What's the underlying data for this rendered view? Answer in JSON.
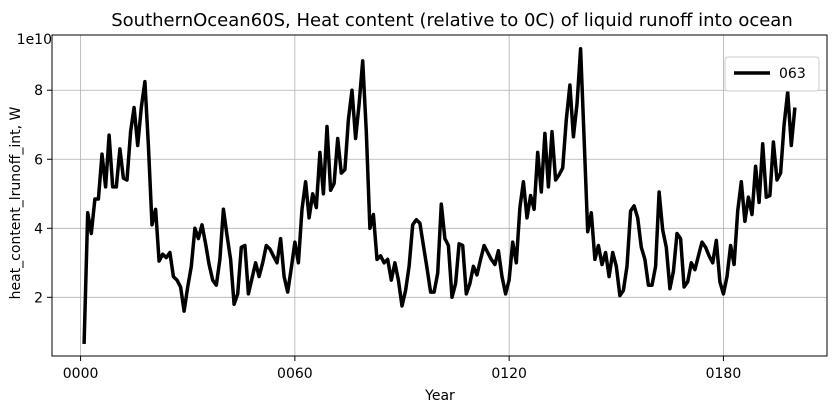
{
  "chart_data": {
    "type": "line",
    "title": "SouthernOcean60S, Heat content (relative to 0C) of liquid runoff into ocean",
    "xlabel": "Year",
    "ylabel": "heat_content_lrunoff_int, W",
    "y_offset_label": "1e10",
    "x_ticks": [
      {
        "value": 0,
        "label": "0000"
      },
      {
        "value": 60,
        "label": "0060"
      },
      {
        "value": 120,
        "label": "0120"
      },
      {
        "value": 180,
        "label": "0180"
      }
    ],
    "y_ticks": [
      {
        "value": 2,
        "label": "2"
      },
      {
        "value": 4,
        "label": "4"
      },
      {
        "value": 6,
        "label": "6"
      },
      {
        "value": 8,
        "label": "8"
      }
    ],
    "xlim": [
      -8,
      209
    ],
    "ylim": [
      0.3,
      9.6
    ],
    "grid": true,
    "legend_position": "top-right",
    "series": [
      {
        "name": "063",
        "color": "#000000",
        "x": [
          1,
          2,
          3,
          4,
          5,
          6,
          7,
          8,
          9,
          10,
          11,
          12,
          13,
          14,
          15,
          16,
          17,
          18,
          19,
          20,
          21,
          22,
          23,
          24,
          25,
          26,
          27,
          28,
          29,
          30,
          31,
          32,
          33,
          34,
          35,
          36,
          37,
          38,
          39,
          40,
          41,
          42,
          43,
          44,
          45,
          46,
          47,
          48,
          49,
          50,
          51,
          52,
          53,
          54,
          55,
          56,
          57,
          58,
          59,
          60,
          61,
          62,
          63,
          64,
          65,
          66,
          67,
          68,
          69,
          70,
          71,
          72,
          73,
          74,
          75,
          76,
          77,
          78,
          79,
          80,
          81,
          82,
          83,
          84,
          85,
          86,
          87,
          88,
          89,
          90,
          91,
          92,
          93,
          94,
          95,
          96,
          97,
          98,
          99,
          100,
          101,
          102,
          103,
          104,
          105,
          106,
          107,
          108,
          109,
          110,
          111,
          112,
          113,
          114,
          115,
          116,
          117,
          118,
          119,
          120,
          121,
          122,
          123,
          124,
          125,
          126,
          127,
          128,
          129,
          130,
          131,
          132,
          133,
          134,
          135,
          136,
          137,
          138,
          139,
          140,
          141,
          142,
          143,
          144,
          145,
          146,
          147,
          148,
          149,
          150,
          151,
          152,
          153,
          154,
          155,
          156,
          157,
          158,
          159,
          160,
          161,
          162,
          163,
          164,
          165,
          166,
          167,
          168,
          169,
          170,
          171,
          172,
          173,
          174,
          175,
          176,
          177,
          178,
          179,
          180,
          181,
          182,
          183,
          184,
          185,
          186,
          187,
          188,
          189,
          190,
          191,
          192,
          193,
          194,
          195,
          196,
          197,
          198,
          199,
          200
        ],
        "values": [
          0.65,
          4.45,
          3.85,
          4.85,
          4.85,
          6.15,
          5.2,
          6.7,
          5.2,
          5.2,
          6.3,
          5.45,
          5.4,
          6.8,
          7.5,
          6.4,
          7.5,
          8.25,
          6.4,
          4.1,
          4.55,
          3.05,
          3.25,
          3.15,
          3.3,
          2.6,
          2.5,
          2.3,
          1.6,
          2.3,
          2.9,
          4.0,
          3.7,
          4.1,
          3.55,
          2.95,
          2.5,
          2.35,
          3.1,
          4.55,
          3.8,
          3.1,
          1.8,
          2.1,
          3.45,
          3.5,
          2.1,
          2.55,
          3.0,
          2.6,
          3.0,
          3.5,
          3.4,
          3.2,
          3.0,
          3.7,
          2.6,
          2.15,
          2.85,
          3.6,
          3.0,
          4.55,
          5.35,
          4.3,
          5.0,
          4.6,
          6.2,
          5.0,
          6.95,
          5.1,
          5.3,
          6.6,
          5.6,
          5.7,
          7.15,
          8.0,
          6.6,
          7.6,
          8.85,
          6.8,
          4.0,
          4.4,
          3.1,
          3.2,
          3.0,
          3.1,
          2.5,
          3.0,
          2.5,
          1.75,
          2.2,
          2.9,
          4.1,
          4.25,
          4.15,
          3.5,
          2.85,
          2.15,
          2.15,
          2.7,
          4.7,
          3.7,
          3.5,
          2.0,
          2.4,
          3.55,
          3.5,
          2.1,
          2.4,
          2.9,
          2.65,
          3.1,
          3.5,
          3.3,
          3.1,
          2.95,
          3.35,
          2.6,
          2.1,
          2.5,
          3.6,
          3.0,
          4.6,
          5.35,
          4.3,
          4.95,
          4.55,
          6.2,
          5.05,
          6.75,
          5.2,
          6.8,
          5.4,
          5.55,
          5.75,
          7.15,
          8.15,
          6.65,
          7.6,
          9.2,
          6.6,
          3.9,
          4.45,
          3.1,
          3.5,
          2.95,
          3.3,
          2.6,
          3.3,
          2.9,
          2.05,
          2.2,
          2.9,
          4.5,
          4.65,
          4.3,
          3.45,
          3.1,
          2.35,
          2.35,
          2.9,
          5.05,
          3.95,
          3.45,
          2.25,
          2.75,
          3.85,
          3.7,
          2.3,
          2.45,
          3.0,
          2.8,
          3.2,
          3.6,
          3.45,
          3.2,
          3.0,
          3.65,
          2.45,
          2.1,
          2.6,
          3.5,
          2.95,
          4.5,
          5.35,
          4.2,
          4.9,
          4.4,
          5.8,
          4.75,
          6.45,
          4.9,
          4.95,
          6.5,
          5.4,
          5.6,
          7.0,
          7.95,
          6.4,
          7.5
        ]
      }
    ]
  }
}
